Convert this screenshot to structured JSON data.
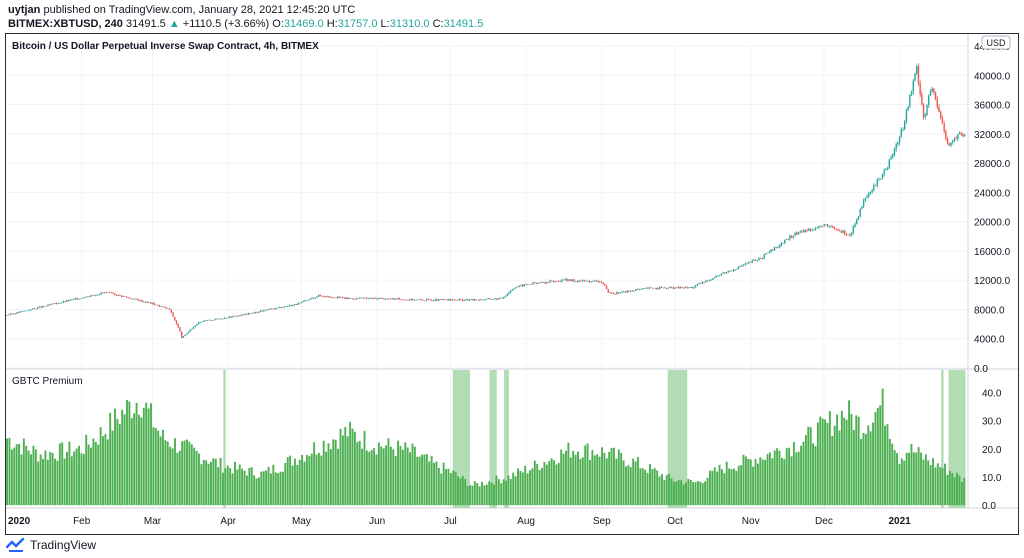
{
  "header": {
    "author": "uytjan",
    "published_text": "published on TradingView.com, January 28, 2021 12:45:20 UTC",
    "symbol": "BITMEX:XBTUSD, 240",
    "last": "31491.5",
    "change_arrow": "▲",
    "change": "+1110.5 (+3.66%)",
    "o_label": "O:",
    "o_value": "31469.0",
    "h_label": "H:",
    "h_value": "31757.0",
    "l_label": "L:",
    "l_value": "31310.0",
    "c_label": "C:",
    "c_value": "31491.5"
  },
  "footer": {
    "brand": "TradingView",
    "logo_icon": "tradingview-logo-icon"
  },
  "colors": {
    "up": "#26a69a",
    "down": "#ef5350",
    "histogram": "#4caf50",
    "highlight": "#a5d6a7",
    "grid": "#f0f3fa"
  },
  "chart_data": [
    {
      "type": "line",
      "title": "Bitcoin / US Dollar Perpetual Inverse Swap Contract, 4h, BITMEX",
      "currency_badge": "USD",
      "ylim": [
        0,
        44000
      ],
      "y_ticks": [
        "44000.0",
        "40000.0",
        "36000.0",
        "32000.0",
        "28000.0",
        "24000.0",
        "20000.0",
        "16000.0",
        "12000.0",
        "8000.0",
        "4000.0",
        "0.0"
      ],
      "x": [
        "2020-01-01",
        "2020-01-20",
        "2020-02-10",
        "2020-02-14",
        "2020-03-01",
        "2020-03-08",
        "2020-03-12",
        "2020-03-13",
        "2020-03-20",
        "2020-04-06",
        "2020-04-30",
        "2020-05-08",
        "2020-05-20",
        "2020-06-01",
        "2020-06-20",
        "2020-07-10",
        "2020-07-22",
        "2020-07-27",
        "2020-08-02",
        "2020-08-17",
        "2020-09-01",
        "2020-09-04",
        "2020-09-20",
        "2020-10-08",
        "2020-10-21",
        "2020-11-05",
        "2020-11-20",
        "2020-12-01",
        "2020-12-12",
        "2020-12-17",
        "2020-12-27",
        "2021-01-02",
        "2021-01-08",
        "2021-01-11",
        "2021-01-14",
        "2021-01-21",
        "2021-01-26",
        "2021-01-28"
      ],
      "values": [
        7200,
        8700,
        10300,
        10100,
        8800,
        8000,
        5200,
        4100,
        6300,
        7200,
        8800,
        9900,
        9500,
        9500,
        9300,
        9300,
        9500,
        11000,
        11500,
        12000,
        11800,
        10100,
        10900,
        11000,
        13000,
        15000,
        18500,
        19500,
        18200,
        22500,
        27500,
        32500,
        41000,
        34000,
        38500,
        30500,
        32000,
        31491
      ]
    },
    {
      "type": "bar",
      "title": "GBTC Premium",
      "ylim": [
        -1,
        48
      ],
      "y_ticks": [
        "40.0",
        "30.0",
        "20.0",
        "10.0",
        "0.0"
      ],
      "x": [
        "2020-01-01",
        "2020-01-15",
        "2020-02-01",
        "2020-02-10",
        "2020-02-18",
        "2020-02-25",
        "2020-03-05",
        "2020-03-15",
        "2020-03-30",
        "2020-04-15",
        "2020-04-25",
        "2020-05-08",
        "2020-05-20",
        "2020-05-30",
        "2020-06-15",
        "2020-06-25",
        "2020-07-01",
        "2020-07-10",
        "2020-07-25",
        "2020-08-05",
        "2020-08-20",
        "2020-09-01",
        "2020-09-15",
        "2020-09-30",
        "2020-10-10",
        "2020-10-20",
        "2020-11-01",
        "2020-11-15",
        "2020-11-25",
        "2020-12-05",
        "2020-12-10",
        "2020-12-17",
        "2020-12-25",
        "2021-01-01",
        "2021-01-05",
        "2021-01-15",
        "2021-01-22",
        "2021-01-27"
      ],
      "values": [
        24,
        18,
        20,
        26,
        33,
        38,
        24,
        20,
        14,
        11,
        15,
        21,
        26,
        22,
        19,
        14,
        12,
        7,
        10,
        14,
        20,
        19,
        15,
        9,
        8,
        13,
        16,
        20,
        24,
        30,
        33,
        28,
        36,
        17,
        20,
        15,
        12,
        9
      ],
      "highlight_ranges": [
        [
          "2020-03-30",
          "2020-03-31"
        ],
        [
          "2020-07-02",
          "2020-07-09"
        ],
        [
          "2020-07-17",
          "2020-07-20"
        ],
        [
          "2020-07-23",
          "2020-07-25"
        ],
        [
          "2020-09-28",
          "2020-10-06"
        ],
        [
          "2021-01-18",
          "2021-01-19"
        ],
        [
          "2021-01-21",
          "2021-01-28"
        ]
      ]
    }
  ],
  "x_axis_labels": [
    "2020",
    "Feb",
    "Mar",
    "Apr",
    "May",
    "Jun",
    "Jul",
    "Aug",
    "Sep",
    "Oct",
    "Nov",
    "Dec",
    "2021"
  ],
  "x_axis_dates": [
    "2020-01-01",
    "2020-02-01",
    "2020-03-01",
    "2020-04-01",
    "2020-05-01",
    "2020-06-01",
    "2020-07-01",
    "2020-08-01",
    "2020-09-01",
    "2020-10-01",
    "2020-11-01",
    "2020-12-01",
    "2021-01-01"
  ],
  "x_range": [
    "2020-01-01",
    "2021-01-29"
  ]
}
